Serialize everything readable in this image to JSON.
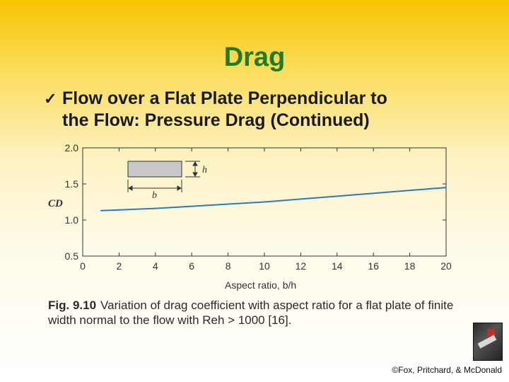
{
  "slide": {
    "title": "Drag",
    "bullet_check": "✓",
    "bullet_line1": "Flow over a Flat Plate Perpendicular to",
    "bullet_line2": "the Flow: Pressure Drag (Continued)",
    "caption_fig": "Fig. 9.10",
    "caption_text": "Variation of drag coefficient with aspect ratio for a flat plate of finite width normal to the flow with Reh > 1000 [16].",
    "copyright": "©Fox, Pritchard, & McDonald"
  },
  "chart_data": {
    "type": "line",
    "xlabel": "Aspect ratio, b/h",
    "ylabel": "CD",
    "xlim": [
      0,
      20
    ],
    "ylim": [
      0.5,
      2.0
    ],
    "xticks": [
      "0",
      "2",
      "4",
      "6",
      "8",
      "10",
      "12",
      "14",
      "16",
      "18",
      "20"
    ],
    "yticks": [
      "0.5",
      "1.0",
      "1.5",
      "2.0"
    ],
    "series": [
      {
        "x": [
          1,
          2,
          4,
          6,
          8,
          10,
          12,
          14,
          16,
          18,
          20
        ],
        "y": [
          1.13,
          1.14,
          1.16,
          1.19,
          1.22,
          1.25,
          1.29,
          1.33,
          1.37,
          1.41,
          1.45
        ]
      }
    ],
    "inset_labels": {
      "height": "h",
      "width": "b"
    },
    "colors": {
      "curve": "#2f79b8",
      "plate_fill": "#c8c8c8"
    },
    "grid": false
  }
}
